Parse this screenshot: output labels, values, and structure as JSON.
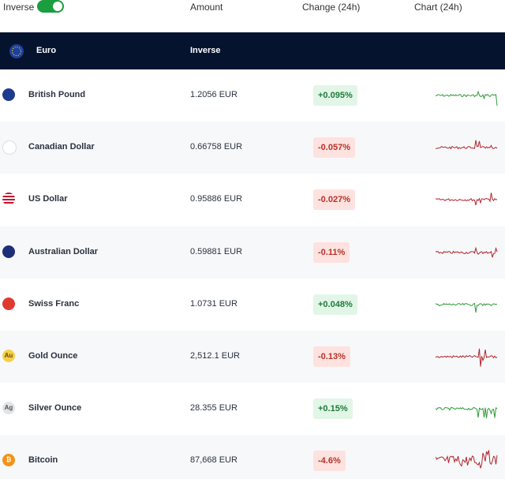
{
  "header": {
    "toggle_label": "Inverse",
    "columns": [
      "Amount",
      "Change (24h)",
      "Chart (24h)"
    ]
  },
  "base": {
    "name": "Euro",
    "mode": "Inverse"
  },
  "rows": [
    {
      "name": "British Pound",
      "amount": "1.2056 EUR",
      "change": "+0.095%"
    },
    {
      "name": "Canadian Dollar",
      "amount": "0.66758 EUR",
      "change": "-0.057%"
    },
    {
      "name": "US Dollar",
      "amount": "0.95886 EUR",
      "change": "-0.027%"
    },
    {
      "name": "Australian Dollar",
      "amount": "0.59881 EUR",
      "change": "-0.11%"
    },
    {
      "name": "Swiss Franc",
      "amount": "1.0731 EUR",
      "change": "+0.048%"
    },
    {
      "name": "Gold Ounce",
      "amount": "2,512.1 EUR",
      "change": "-0.13%",
      "icon": "Au"
    },
    {
      "name": "Silver Ounce",
      "amount": "28.355 EUR",
      "change": "+0.15%",
      "icon": "Ag"
    },
    {
      "name": "Bitcoin",
      "amount": "87,668 EUR",
      "change": "-4.6%",
      "icon": "₿"
    }
  ]
}
